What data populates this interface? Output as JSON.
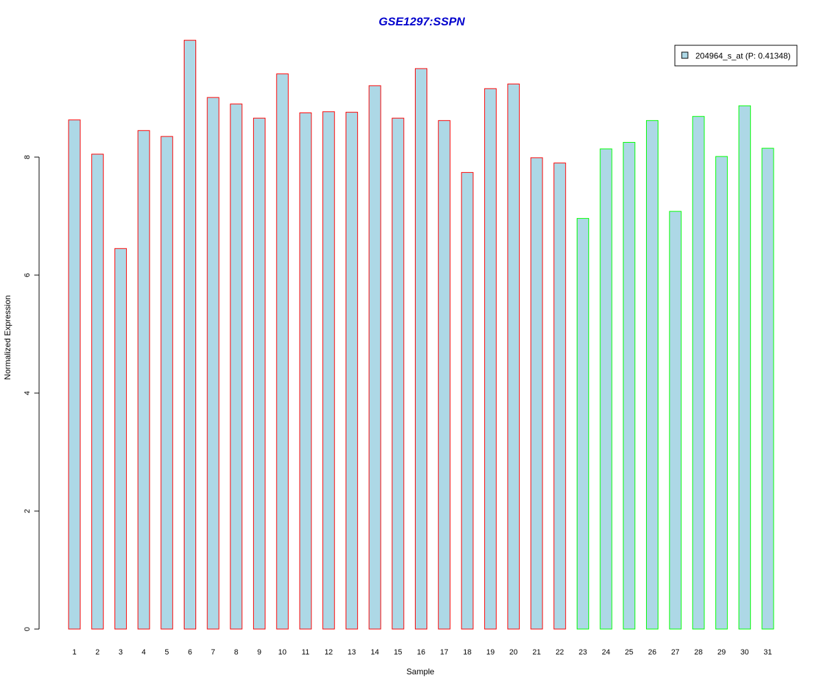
{
  "chart_data": {
    "type": "bar",
    "title": "GSE1297:SSPN",
    "xlabel": "Sample",
    "ylabel": "Normalized Expression",
    "ylim": [
      0,
      10
    ],
    "yticks": [
      0,
      2,
      4,
      6,
      8
    ],
    "categories": [
      "1",
      "2",
      "3",
      "4",
      "5",
      "6",
      "7",
      "8",
      "9",
      "10",
      "11",
      "12",
      "13",
      "14",
      "15",
      "16",
      "17",
      "18",
      "19",
      "20",
      "21",
      "22",
      "23",
      "24",
      "25",
      "26",
      "27",
      "28",
      "29",
      "30",
      "31"
    ],
    "series": [
      {
        "name": "204964_s_at (P: 0.41348)",
        "values": [
          8.63,
          8.05,
          6.45,
          8.45,
          8.35,
          9.98,
          9.01,
          8.9,
          8.66,
          9.41,
          8.75,
          8.77,
          8.76,
          9.21,
          8.66,
          9.5,
          8.62,
          7.74,
          9.16,
          9.24,
          7.99,
          7.9,
          6.96,
          8.14,
          8.25,
          8.62,
          7.08,
          8.69,
          8.01,
          8.87,
          8.15
        ],
        "groups": [
          "red",
          "red",
          "red",
          "red",
          "red",
          "red",
          "red",
          "red",
          "red",
          "red",
          "red",
          "red",
          "red",
          "red",
          "red",
          "red",
          "red",
          "red",
          "red",
          "red",
          "red",
          "red",
          "green",
          "green",
          "green",
          "green",
          "green",
          "green",
          "green",
          "green",
          "green"
        ]
      }
    ],
    "colors": {
      "bar_fill": "#add8e6",
      "red_border": "#ff0000",
      "green_border": "#00ff00",
      "title": "#0000cd"
    },
    "legend": {
      "label": "204964_s_at (P: 0.41348)",
      "placement": "top-right"
    },
    "grid": false
  }
}
